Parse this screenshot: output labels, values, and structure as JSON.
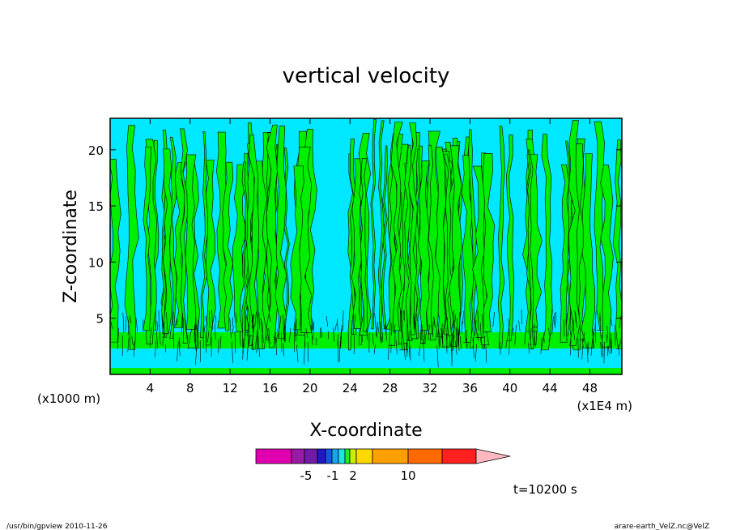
{
  "chart_data": {
    "type": "heatmap",
    "title": "vertical velocity",
    "xlabel": "X-coordinate",
    "ylabel": "Z-coordinate",
    "x_unit_left": "(x1000 m)",
    "x_unit_right": "(x1E4 m)",
    "xlim": [
      0,
      51.2
    ],
    "ylim": [
      0,
      22.8
    ],
    "x_ticks": [
      4,
      8,
      12,
      16,
      20,
      24,
      28,
      32,
      36,
      40,
      44,
      48
    ],
    "y_ticks": [
      5,
      10,
      15,
      20
    ],
    "colorbar": {
      "colors": [
        "#e000b0",
        "#9a1aa8",
        "#6f1aa8",
        "#2018c0",
        "#1458e0",
        "#10a8f0",
        "#18e8e0",
        "#28e828",
        "#c8f000",
        "#ffd800",
        "#ffa000",
        "#ff6a00",
        "#ff2020",
        "#ff7070",
        "#ffb8c0"
      ],
      "tick_labels": [
        "-5",
        "-1",
        "2",
        "10"
      ]
    },
    "contour_fill_colors": {
      "negative": "#00e8ff",
      "positive": "#00ee00"
    },
    "grid": false
  },
  "time_label": "t=10200 s",
  "footer_left": "/usr/bin/gpview   2010-11-26",
  "footer_right": "arare-earth_VelZ.nc@VelZ"
}
